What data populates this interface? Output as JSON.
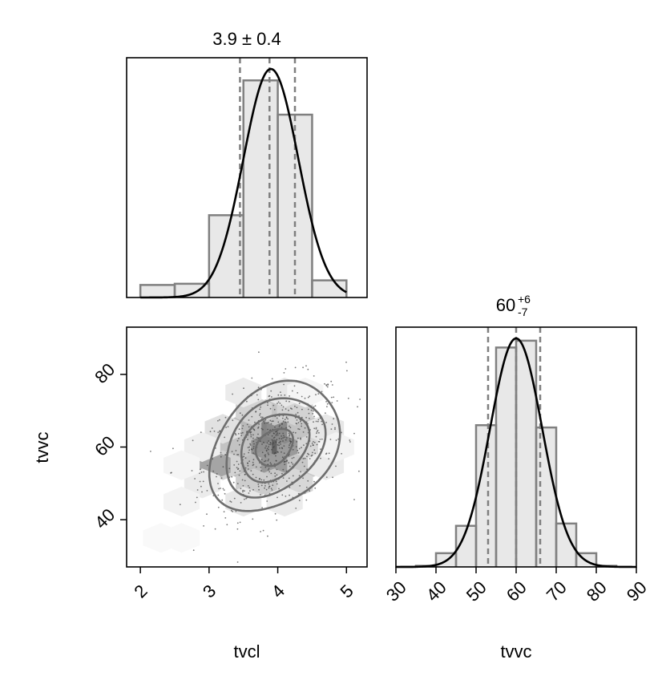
{
  "chart_data": [
    {
      "type": "histogram",
      "parameter": "tvcl",
      "title": "3.9 ± 0.4",
      "title_parts": {
        "median": "3.9",
        "plus": "0.4",
        "minus": "0.4",
        "symmetric": true
      },
      "xlim": [
        1.8,
        5.3
      ],
      "ylim": [
        0,
        1.0
      ],
      "bins": [
        {
          "x0": 2.0,
          "x1": 2.5,
          "density": 0.055
        },
        {
          "x0": 2.5,
          "x1": 3.0,
          "density": 0.06
        },
        {
          "x0": 3.0,
          "x1": 3.5,
          "density": 0.36
        },
        {
          "x0": 3.5,
          "x1": 4.0,
          "density": 0.95
        },
        {
          "x0": 4.0,
          "x1": 4.5,
          "density": 0.8
        },
        {
          "x0": 4.5,
          "x1": 5.0,
          "density": 0.075
        }
      ],
      "kde": {
        "mean": 3.9,
        "sd": 0.4,
        "peak": 1.0,
        "from": 2.0,
        "to": 5.0
      },
      "quantiles": [
        3.45,
        3.88,
        4.25
      ],
      "colors": {
        "hist_fill": "#e8e8e8",
        "hist_edge": "#808080",
        "kde": "#000000",
        "quantile": "#7f7f7f"
      }
    },
    {
      "type": "histogram",
      "parameter": "tvvc",
      "title_parts": {
        "median": "60",
        "plus": "+6",
        "minus": "-7",
        "symmetric": false
      },
      "xlabel": "tvvc",
      "xticks": [
        "30",
        "40",
        "50",
        "60",
        "70",
        "80",
        "90"
      ],
      "xlim": [
        30,
        90
      ],
      "ylim": [
        0,
        1.0
      ],
      "bins": [
        {
          "x0": 30,
          "x1": 35,
          "density": 0.0
        },
        {
          "x0": 35,
          "x1": 40,
          "density": 0.005
        },
        {
          "x0": 40,
          "x1": 45,
          "density": 0.06
        },
        {
          "x0": 45,
          "x1": 50,
          "density": 0.18
        },
        {
          "x0": 50,
          "x1": 55,
          "density": 0.62
        },
        {
          "x0": 55,
          "x1": 60,
          "density": 0.96
        },
        {
          "x0": 60,
          "x1": 65,
          "density": 0.99
        },
        {
          "x0": 65,
          "x1": 70,
          "density": 0.61
        },
        {
          "x0": 70,
          "x1": 75,
          "density": 0.19
        },
        {
          "x0": 75,
          "x1": 80,
          "density": 0.06
        },
        {
          "x0": 80,
          "x1": 85,
          "density": 0.005
        }
      ],
      "kde": {
        "mean": 60,
        "sd": 6.5,
        "peak": 1.0,
        "from": 30,
        "to": 90
      },
      "quantiles": [
        53,
        60,
        66
      ],
      "colors": {
        "hist_fill": "#e8e8e8",
        "hist_edge": "#808080",
        "kde": "#000000",
        "quantile": "#7f7f7f"
      }
    },
    {
      "type": "scatter-contour",
      "parameters": [
        "tvcl",
        "tvvc"
      ],
      "xlabel": "tvcl",
      "ylabel": "tvvc",
      "xticks": [
        "2",
        "3",
        "4",
        "5"
      ],
      "yticks": [
        "40",
        "60",
        "80"
      ],
      "xlim": [
        1.8,
        5.3
      ],
      "ylim": [
        27,
        93
      ],
      "center": {
        "x": 3.95,
        "y": 60
      },
      "spread": {
        "x": 0.45,
        "y": 8.5
      },
      "contour_levels_sigma": [
        0.6,
        1.1,
        1.6,
        2.1
      ],
      "hexbin": [
        {
          "x": 3.95,
          "y": 60,
          "shade": 0.78
        },
        {
          "x": 3.65,
          "y": 60,
          "shade": 0.55
        },
        {
          "x": 4.25,
          "y": 60,
          "shade": 0.5
        },
        {
          "x": 3.8,
          "y": 65,
          "shade": 0.62
        },
        {
          "x": 4.1,
          "y": 65,
          "shade": 0.58
        },
        {
          "x": 3.8,
          "y": 55,
          "shade": 0.52
        },
        {
          "x": 4.1,
          "y": 55,
          "shade": 0.5
        },
        {
          "x": 3.5,
          "y": 65,
          "shade": 0.35
        },
        {
          "x": 4.4,
          "y": 65,
          "shade": 0.3
        },
        {
          "x": 3.5,
          "y": 55,
          "shade": 0.34
        },
        {
          "x": 4.4,
          "y": 55,
          "shade": 0.28
        },
        {
          "x": 3.95,
          "y": 70,
          "shade": 0.3
        },
        {
          "x": 3.65,
          "y": 70,
          "shade": 0.22
        },
        {
          "x": 4.25,
          "y": 70,
          "shade": 0.22
        },
        {
          "x": 3.95,
          "y": 50,
          "shade": 0.28
        },
        {
          "x": 3.65,
          "y": 50,
          "shade": 0.25
        },
        {
          "x": 4.25,
          "y": 50,
          "shade": 0.2
        },
        {
          "x": 3.35,
          "y": 60,
          "shade": 0.3
        },
        {
          "x": 4.55,
          "y": 60,
          "shade": 0.2
        },
        {
          "x": 3.2,
          "y": 55,
          "shade": 0.22
        },
        {
          "x": 3.05,
          "y": 55,
          "shade": 0.45
        },
        {
          "x": 3.2,
          "y": 65,
          "shade": 0.15
        },
        {
          "x": 4.7,
          "y": 65,
          "shade": 0.12
        },
        {
          "x": 4.7,
          "y": 55,
          "shade": 0.1
        },
        {
          "x": 3.5,
          "y": 75,
          "shade": 0.1
        },
        {
          "x": 4.1,
          "y": 75,
          "shade": 0.12
        },
        {
          "x": 3.5,
          "y": 45,
          "shade": 0.12
        },
        {
          "x": 4.1,
          "y": 45,
          "shade": 0.1
        },
        {
          "x": 2.9,
          "y": 50,
          "shade": 0.1
        },
        {
          "x": 2.9,
          "y": 60,
          "shade": 0.08
        },
        {
          "x": 2.6,
          "y": 45,
          "shade": 0.06
        },
        {
          "x": 2.6,
          "y": 55,
          "shade": 0.05
        },
        {
          "x": 2.3,
          "y": 35,
          "shade": 0.03
        },
        {
          "x": 2.6,
          "y": 35,
          "shade": 0.03
        },
        {
          "x": 4.85,
          "y": 60,
          "shade": 0.06
        },
        {
          "x": 4.4,
          "y": 75,
          "shade": 0.05
        }
      ],
      "scatter_points": 700,
      "colors": {
        "contour": "#6e6e6e",
        "points": "#404040"
      }
    }
  ]
}
